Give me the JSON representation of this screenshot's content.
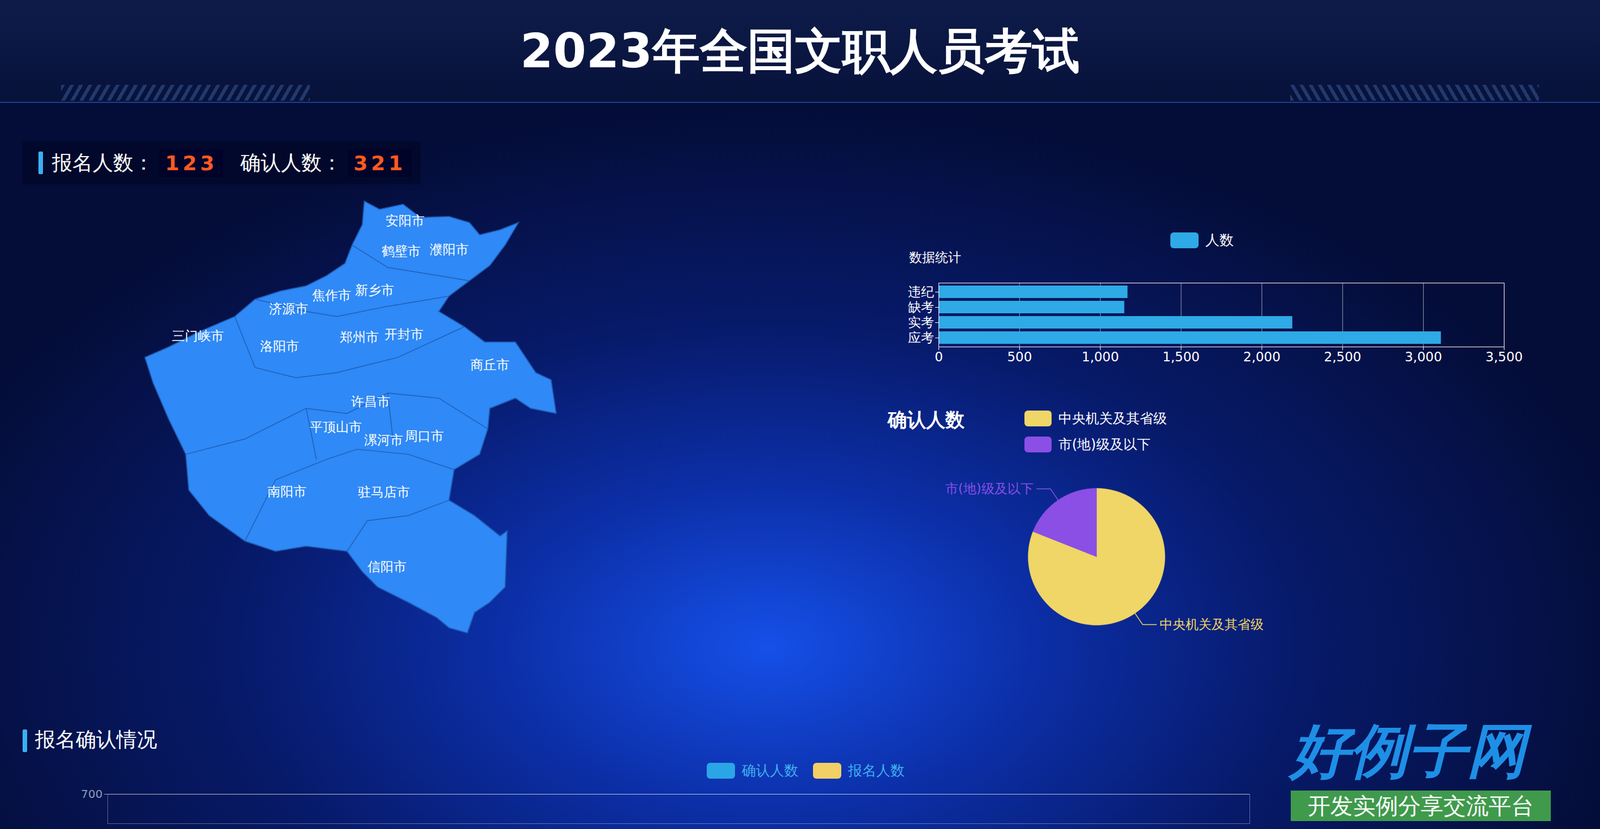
{
  "header": {
    "title": "2023年全国文职人员考试"
  },
  "stats": [
    {
      "label": "报名人数：",
      "value": 123
    },
    {
      "label": "确认人数：",
      "value": 321
    }
  ],
  "map": {
    "regions": [
      "安阳市",
      "鹤壁市",
      "濮阳市",
      "新乡市",
      "焦作市",
      "济源市",
      "三门峡市",
      "洛阳市",
      "郑州市",
      "开封市",
      "商丘市",
      "许昌市",
      "平顶山市",
      "漯河市",
      "周口市",
      "南阳市",
      "驻马店市",
      "信阳市"
    ]
  },
  "chart_data": [
    {
      "type": "bar",
      "title": "数据统计",
      "orientation": "horizontal",
      "categories": [
        "违纪",
        "缺考",
        "实考",
        "应考"
      ],
      "series": [
        {
          "name": "人数",
          "color": "#2eaae6",
          "values": [
            1170,
            1150,
            2190,
            3110
          ]
        }
      ],
      "xlim": [
        0,
        3500
      ],
      "xticks": [
        0,
        500,
        {
          "value": 1000,
          "label": "1,000"
        },
        {
          "value": 1500,
          "label": "1,500"
        },
        {
          "value": 2000,
          "label": "2,000"
        },
        {
          "value": 2500,
          "label": "2,500"
        },
        {
          "value": 3000,
          "label": "3,000"
        },
        {
          "value": 3500,
          "label": "3,500"
        }
      ],
      "grid": true,
      "legend": "top"
    },
    {
      "type": "pie",
      "title": "确认人数",
      "categories": [
        "中央机关及其省级",
        "市(地)级及以下"
      ],
      "values": [
        81,
        19
      ],
      "colors": [
        "#efd666",
        "#8b4fe6"
      ],
      "legend": "top"
    },
    {
      "type": "bar",
      "title": "报名确认情况",
      "categories": [],
      "series": [
        {
          "name": "确认人数",
          "color": "#2aa6e6",
          "values": []
        },
        {
          "name": "报名人数",
          "color": "#f2d064",
          "values": []
        }
      ],
      "ylim": [
        0,
        700
      ],
      "yticks": [
        700
      ],
      "grid": true,
      "legend": "top"
    }
  ],
  "watermark": {
    "title": "好例子网",
    "subtitle": "开发实例分享交流平台"
  }
}
